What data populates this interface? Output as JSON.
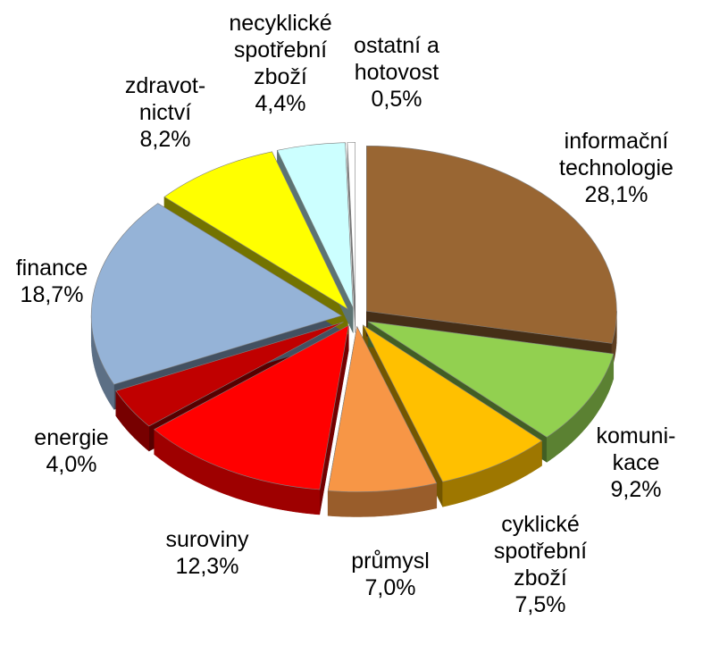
{
  "chart_data": {
    "type": "pie",
    "title": "",
    "slices": [
      {
        "label_lines": [
          "informační",
          "technologie"
        ],
        "value_text": "28,1%",
        "value": 28.1,
        "color": "#996633"
      },
      {
        "label_lines": [
          "komuni-",
          "kace"
        ],
        "value_text": "9,2%",
        "value": 9.2,
        "color": "#92d050"
      },
      {
        "label_lines": [
          "cyklické",
          "spotřební",
          "zboží"
        ],
        "value_text": "7,5%",
        "value": 7.5,
        "color": "#ffc000"
      },
      {
        "label_lines": [
          "průmysl"
        ],
        "value_text": "7,0%",
        "value": 7.0,
        "color": "#f79646"
      },
      {
        "label_lines": [
          "suroviny"
        ],
        "value_text": "12,3%",
        "value": 12.3,
        "color": "#ff0000"
      },
      {
        "label_lines": [
          "energie"
        ],
        "value_text": "4,0%",
        "value": 4.0,
        "color": "#c00000"
      },
      {
        "label_lines": [
          "finance"
        ],
        "value_text": "18,7%",
        "value": 18.7,
        "color": "#95b3d7"
      },
      {
        "label_lines": [
          "zdravot-",
          "nictví"
        ],
        "value_text": "8,2%",
        "value": 8.2,
        "color": "#ffff00"
      },
      {
        "label_lines": [
          "necyklické",
          "spotřební",
          "zboží"
        ],
        "value_text": "4,4%",
        "value": 4.4,
        "color": "#ccffff"
      },
      {
        "label_lines": [
          "ostatní a",
          "hotovost"
        ],
        "value_text": "0,5%",
        "value": 0.5,
        "color": "#ffffff"
      }
    ]
  }
}
